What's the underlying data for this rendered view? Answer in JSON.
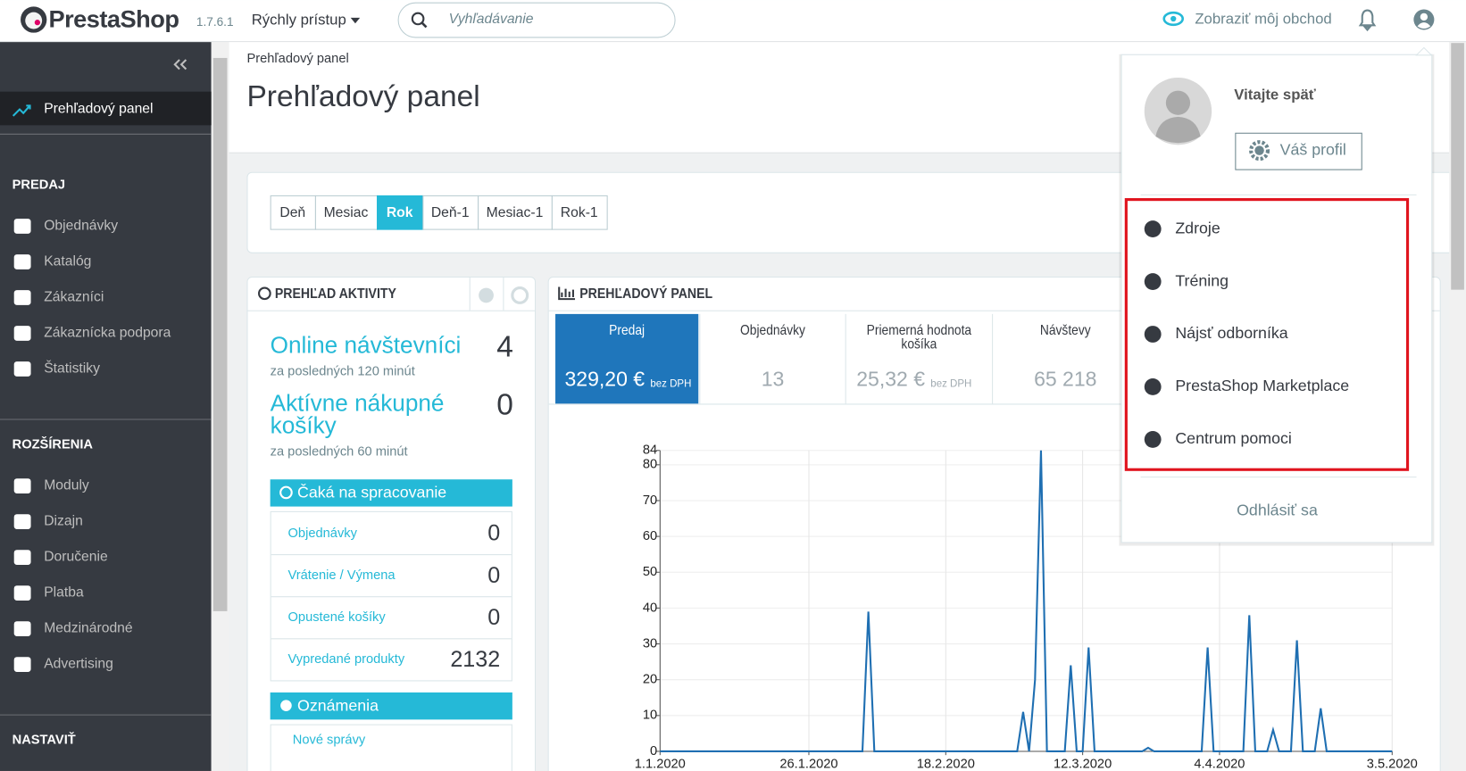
{
  "header": {
    "logo": "PrestaShop",
    "version": "1.7.6.1",
    "quick_access": "Rýchly prístup",
    "search_placeholder": "Vyhľadávanie",
    "view_shop": "Zobraziť môj obchod"
  },
  "sidebar": {
    "active": "Prehľadový panel",
    "sections": [
      {
        "title": "PREDAJ",
        "items": [
          "Objednávky",
          "Katalóg",
          "Zákazníci",
          "Zákaznícka podpora",
          "Štatistiky"
        ]
      },
      {
        "title": "ROZŠÍRENIA",
        "items": [
          "Moduly",
          "Dizajn",
          "Doručenie",
          "Platba",
          "Medzinárodné",
          "Advertising"
        ]
      },
      {
        "title": "NASTAVIŤ",
        "items": []
      }
    ]
  },
  "breadcrumb": "Prehľadový panel",
  "page_title": "Prehľadový panel",
  "periods": {
    "buttons": [
      "Deň",
      "Mesiac",
      "Rok",
      "Deň-1",
      "Mesiac-1",
      "Rok-1"
    ],
    "active": 2
  },
  "activity": {
    "title": "PREHĽAD AKTIVITY",
    "online": {
      "label": "Online návštevníci",
      "value": 4,
      "note": "za posledných 120 minút"
    },
    "carts": {
      "label": "Aktívne nákupné košíky",
      "value": 0,
      "note": "za posledných 60 minút"
    },
    "pending": {
      "title": "Čaká na spracovanie",
      "rows": [
        {
          "label": "Objednávky",
          "value": 0
        },
        {
          "label": "Vrátenie / Výmena",
          "value": 0
        },
        {
          "label": "Opustené košíky",
          "value": 0
        },
        {
          "label": "Vypredané produkty",
          "value": 2132
        }
      ]
    },
    "notifications": {
      "title": "Oznámenia",
      "first": "Nové správy"
    }
  },
  "dashboard": {
    "title": "PREHĽADOVÝ PANEL",
    "kpis": [
      {
        "label": "Predaj",
        "value": "329,20 €",
        "note": "bez DPH"
      },
      {
        "label": "Objednávky",
        "value": 13
      },
      {
        "label": "Priemerná hodnota košíka",
        "value": "25,32 €",
        "note": "bez DPH"
      },
      {
        "label": "Návštevy",
        "value": "65 218"
      }
    ]
  },
  "chart_data": {
    "type": "line",
    "color": "#1f6fb2",
    "grid": true,
    "x": [
      "1.1.2020",
      "4.2.2020",
      "5.2.2020",
      "6.2.2020",
      "1.3.2020",
      "2.3.2020",
      "3.3.2020",
      "4.3.2020",
      "5.3.2020",
      "6.3.2020",
      "9.3.2020",
      "10.3.2020",
      "11.3.2020",
      "12.3.2020",
      "13.3.2020",
      "14.3.2020",
      "22.3.2020",
      "23.3.2020",
      "24.3.2020",
      "1.4.2020",
      "2.4.2020",
      "3.4.2020",
      "8.4.2020",
      "9.4.2020",
      "10.4.2020",
      "12.4.2020",
      "13.4.2020",
      "14.4.2020",
      "16.4.2020",
      "17.4.2020",
      "18.4.2020",
      "20.4.2020",
      "21.4.2020",
      "22.4.2020",
      "3.5.2020"
    ],
    "values": [
      0,
      0,
      39,
      0,
      0,
      11,
      0,
      20,
      84,
      0,
      0,
      24,
      0,
      0,
      29,
      0,
      0,
      1,
      0,
      0,
      29,
      0,
      0,
      38,
      0,
      0,
      6,
      0,
      0,
      31,
      0,
      0,
      12,
      0,
      0
    ],
    "xlim": [
      "1.1.2020",
      "3.5.2020"
    ],
    "xticks": [
      "1.1.2020",
      "26.1.2020",
      "18.2.2020",
      "12.3.2020",
      "4.4.2020",
      "3.5.2020"
    ],
    "ylim": [
      0,
      84
    ],
    "yticks": [
      0,
      10,
      20,
      30,
      40,
      50,
      60,
      70,
      80,
      84
    ]
  },
  "user_menu": {
    "welcome": "Vitajte späť",
    "profile": "Váš profil",
    "items": [
      "Zdroje",
      "Tréning",
      "Nájsť odborníka",
      "PrestaShop Marketplace",
      "Centrum pomoci"
    ],
    "logout": "Odhlásiť sa"
  }
}
